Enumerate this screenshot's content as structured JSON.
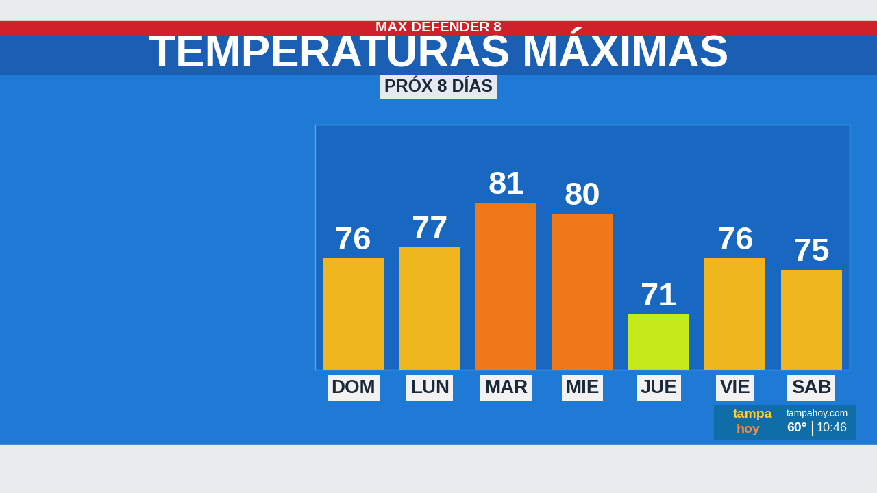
{
  "chart_data": {
    "type": "bar",
    "title": "TEMPERATURAS MÁXIMAS",
    "subtitle": "PRÓX 8 DÍAS",
    "categories": [
      "DOM",
      "LUN",
      "MAR",
      "MIE",
      "JUE",
      "VIE",
      "SAB"
    ],
    "values": [
      76,
      77,
      81,
      80,
      71,
      76,
      75
    ],
    "colors": [
      "#f0b620",
      "#f0b620",
      "#f07818",
      "#f07818",
      "#c4ea1a",
      "#f0b620",
      "#f0b620"
    ],
    "ylim": [
      66,
      88
    ],
    "yticks": [],
    "grid": false,
    "data_labels": true,
    "tick_labels": "x"
  },
  "banner": "MAX DEFENDER 8",
  "station": {
    "logo_lines": [
      "tampa",
      "hoy"
    ],
    "website": "tampahoy.com",
    "temperature": "60°",
    "time": "10:46"
  }
}
